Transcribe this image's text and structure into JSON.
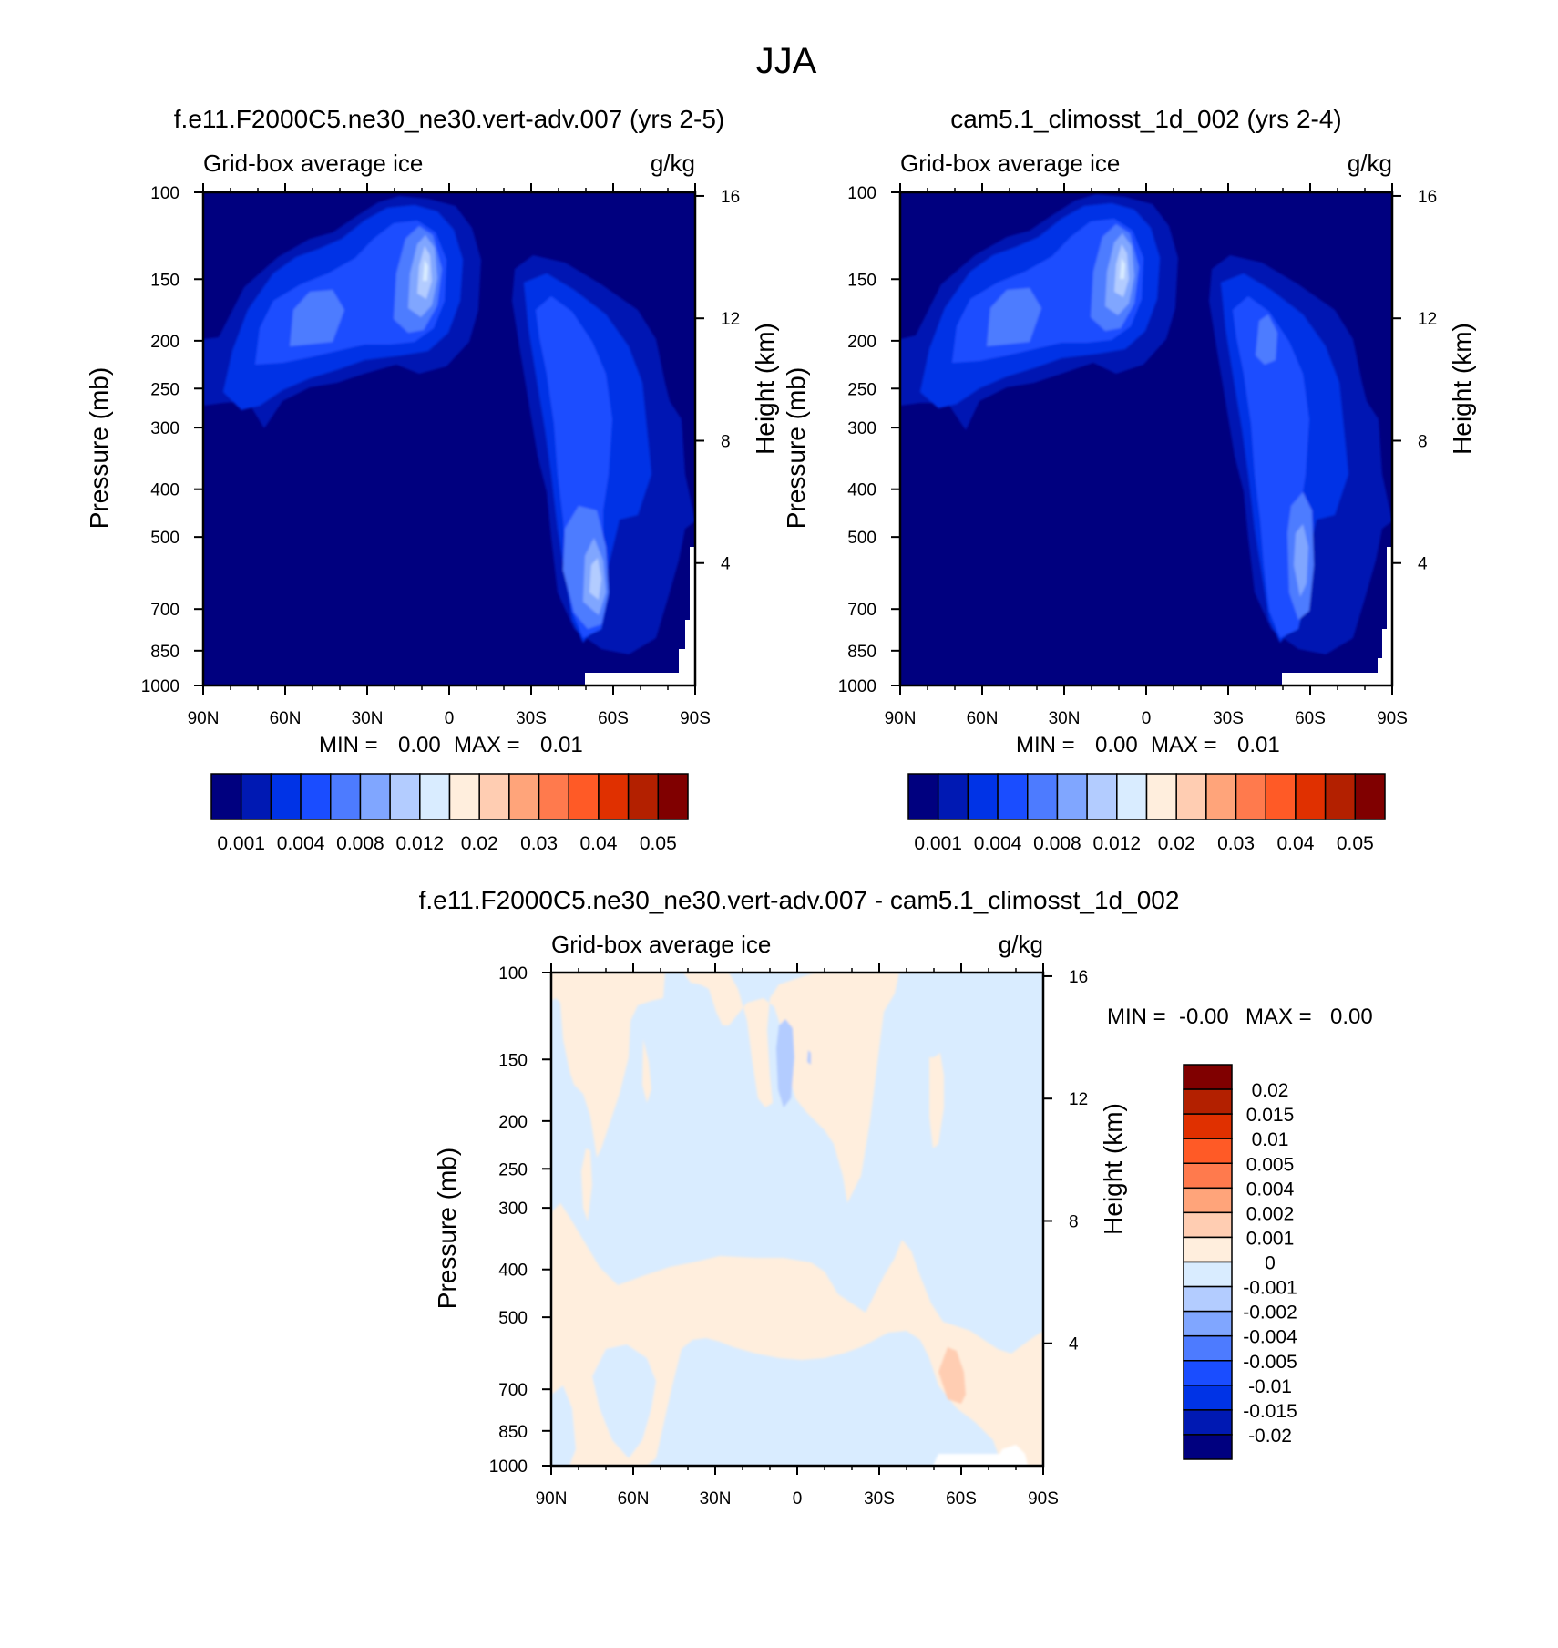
{
  "figure": {
    "title": "JJA"
  },
  "colors": {
    "main_levels": [
      "#00007f",
      "#0019b3",
      "#0033e6",
      "#1a4dff",
      "#4d7bff",
      "#80a6ff",
      "#b3ccff",
      "#d9ecff",
      "#ffeedd",
      "#ffcdb2",
      "#ffa47a",
      "#ff7a4d",
      "#ff5a26",
      "#e03000",
      "#b32000",
      "#800000"
    ],
    "diff_levels": [
      "#00007f",
      "#0019b3",
      "#0033e6",
      "#1a4dff",
      "#4d7bff",
      "#80a6ff",
      "#b3ccff",
      "#d9ecff",
      "#ffeedd",
      "#ffcdb2",
      "#ffa47a",
      "#ff7a4d",
      "#ff5a26",
      "#e03000",
      "#b32000",
      "#800000"
    ]
  },
  "chart_data": [
    {
      "type": "heatmap",
      "title": "f.e11.F2000C5.ne30_ne30.vert-adv.007 (yrs 2-5)",
      "left_label": "Grid-box average ice",
      "right_label": "g/kg",
      "ylabel": "Pressure (mb)",
      "y2label": "Height (km)",
      "x_ticks": [
        "90N",
        "60N",
        "30N",
        "0",
        "30S",
        "60S",
        "90S"
      ],
      "x_values": [
        90,
        60,
        30,
        0,
        -30,
        -60,
        -90
      ],
      "y_ticks": [
        "100",
        "150",
        "200",
        "250",
        "300",
        "400",
        "500",
        "700",
        "850",
        "1000"
      ],
      "y_values": [
        100,
        150,
        200,
        250,
        300,
        400,
        500,
        700,
        850,
        1000
      ],
      "y2_ticks": [
        "16",
        "12",
        "8",
        "4"
      ],
      "y2_values": [
        16,
        12,
        8,
        4
      ],
      "stats": {
        "min_label": "MIN =",
        "min_value": "0.00",
        "max_label": "MAX =",
        "max_value": "0.01"
      },
      "colorbar_labels": [
        "0.001",
        "0.004",
        "0.008",
        "0.012",
        "0.02",
        "0.03",
        "0.04",
        "0.05"
      ],
      "contour_levels": [
        0.001,
        0.002,
        0.004,
        0.006,
        0.008,
        0.01,
        0.012,
        0.015,
        0.02,
        0.025,
        0.03,
        0.035,
        0.04,
        0.045,
        0.05
      ]
    },
    {
      "type": "heatmap",
      "title": "cam5.1_climosst_1d_002 (yrs 2-4)",
      "left_label": "Grid-box average ice",
      "right_label": "g/kg",
      "ylabel": "Pressure (mb)",
      "y2label": "Height (km)",
      "x_ticks": [
        "90N",
        "60N",
        "30N",
        "0",
        "30S",
        "60S",
        "90S"
      ],
      "x_values": [
        90,
        60,
        30,
        0,
        -30,
        -60,
        -90
      ],
      "y_ticks": [
        "100",
        "150",
        "200",
        "250",
        "300",
        "400",
        "500",
        "700",
        "850",
        "1000"
      ],
      "y_values": [
        100,
        150,
        200,
        250,
        300,
        400,
        500,
        700,
        850,
        1000
      ],
      "y2_ticks": [
        "16",
        "12",
        "8",
        "4"
      ],
      "y2_values": [
        16,
        12,
        8,
        4
      ],
      "stats": {
        "min_label": "MIN =",
        "min_value": "0.00",
        "max_label": "MAX =",
        "max_value": "0.01"
      },
      "colorbar_labels": [
        "0.001",
        "0.004",
        "0.008",
        "0.012",
        "0.02",
        "0.03",
        "0.04",
        "0.05"
      ],
      "contour_levels": [
        0.001,
        0.002,
        0.004,
        0.006,
        0.008,
        0.01,
        0.012,
        0.015,
        0.02,
        0.025,
        0.03,
        0.035,
        0.04,
        0.045,
        0.05
      ]
    },
    {
      "type": "heatmap",
      "title": "f.e11.F2000C5.ne30_ne30.vert-adv.007 - cam5.1_climosst_1d_002",
      "left_label": "Grid-box average ice",
      "right_label": "g/kg",
      "ylabel": "Pressure (mb)",
      "y2label": "Height (km)",
      "x_ticks": [
        "90N",
        "60N",
        "30N",
        "0",
        "30S",
        "60S",
        "90S"
      ],
      "x_values": [
        90,
        60,
        30,
        0,
        -30,
        -60,
        -90
      ],
      "y_ticks": [
        "100",
        "150",
        "200",
        "250",
        "300",
        "400",
        "500",
        "700",
        "850",
        "1000"
      ],
      "y_values": [
        100,
        150,
        200,
        250,
        300,
        400,
        500,
        700,
        850,
        1000
      ],
      "y2_ticks": [
        "16",
        "12",
        "8",
        "4"
      ],
      "y2_values": [
        16,
        12,
        8,
        4
      ],
      "stats": {
        "min_label": "MIN =",
        "min_value": "-0.00",
        "max_label": "MAX =",
        "max_value": "0.00"
      },
      "colorbar_labels": [
        "0.02",
        "0.015",
        "0.01",
        "0.005",
        "0.004",
        "0.002",
        "0.001",
        "0",
        "-0.001",
        "-0.002",
        "-0.004",
        "-0.005",
        "-0.01",
        "-0.015",
        "-0.02"
      ],
      "contour_levels": [
        -0.02,
        -0.015,
        -0.01,
        -0.005,
        -0.004,
        -0.002,
        -0.001,
        0,
        0.001,
        0.002,
        0.004,
        0.005,
        0.01,
        0.015,
        0.02
      ]
    }
  ]
}
